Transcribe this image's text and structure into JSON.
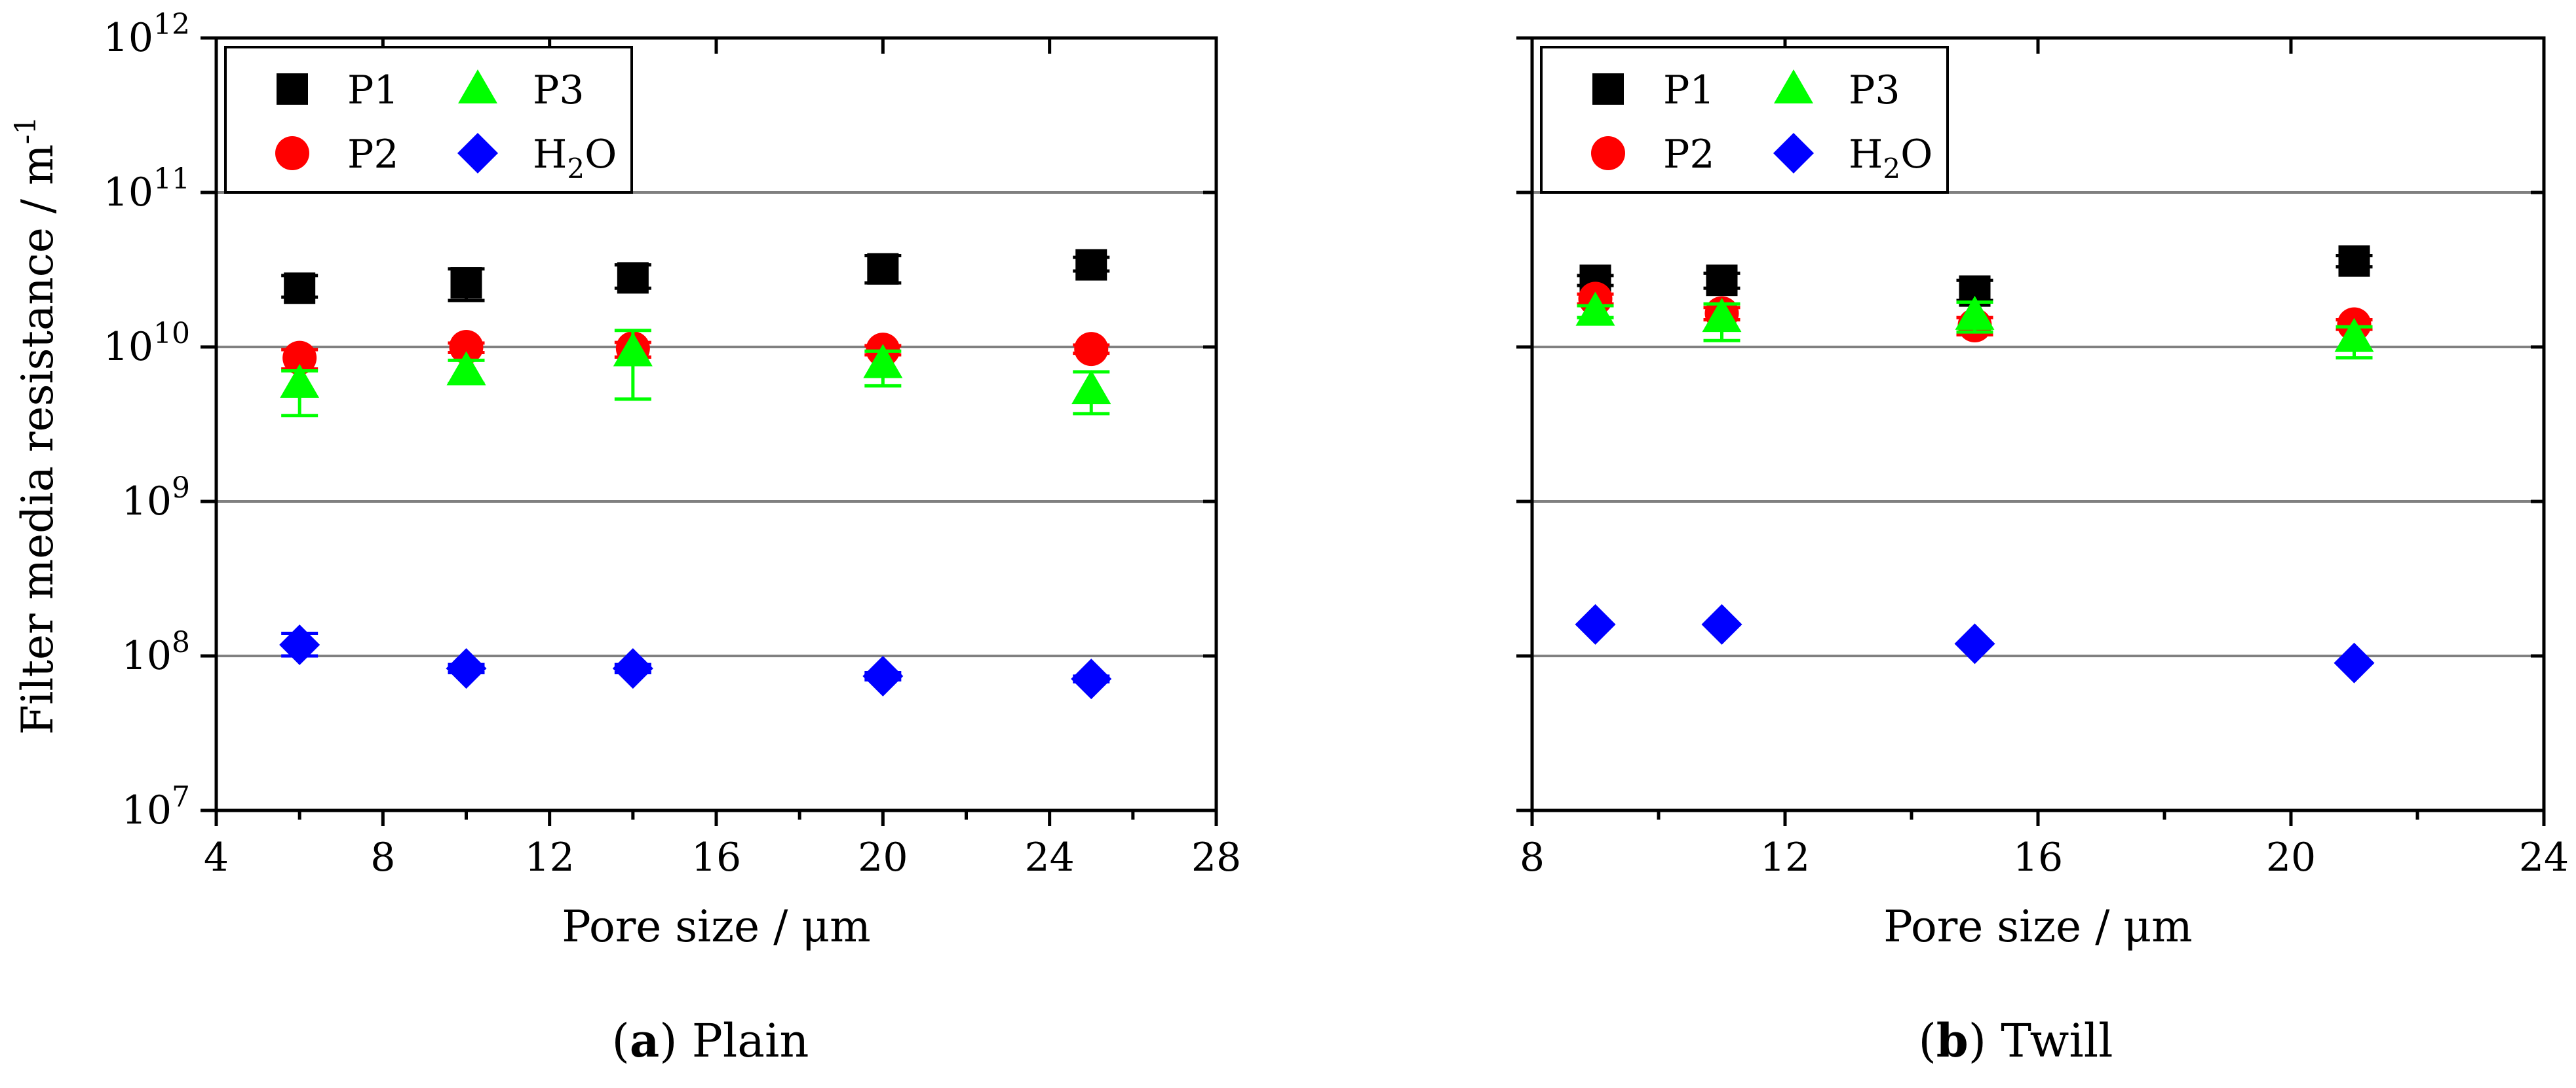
{
  "y_axis_label": "Filter media resistance / m",
  "y_axis_label_superscript": "-1",
  "colors": {
    "P1": "#000000",
    "P2": "#ff0000",
    "P3": "#00ff00",
    "H2O": "#0000ff",
    "grid": "#808080"
  },
  "legend": [
    {
      "key": "P1",
      "label": "P1",
      "marker": "square"
    },
    {
      "key": "P3",
      "label": "P3",
      "marker": "triangle"
    },
    {
      "key": "P2",
      "label": "P2",
      "marker": "circle"
    },
    {
      "key": "H2O",
      "label": "H",
      "subscript": "2",
      "suffix": "O",
      "marker": "diamond"
    }
  ],
  "chart_data": [
    {
      "type": "scatter",
      "panel": "a",
      "caption_letter": "a",
      "caption_text": " Plain",
      "xlabel": "Pore size / μm",
      "xlim": [
        4,
        28
      ],
      "x_ticks": [
        4,
        8,
        12,
        16,
        20,
        24,
        28
      ],
      "y_scale": "log",
      "ylim": [
        10000000.0,
        1000000000000.0
      ],
      "y_tick_exponents": [
        7,
        8,
        9,
        10,
        11,
        12
      ],
      "y_tick_base": "10",
      "grid": "horizontal at major ticks",
      "legend_position": "top-left",
      "series": [
        {
          "name": "P1",
          "marker": "square",
          "x": [
            6,
            10,
            14,
            20,
            25
          ],
          "y": [
            24000000000.0,
            26000000000.0,
            28000000000.0,
            32000000000.0,
            34000000000.0
          ],
          "y_err_low": [
            21000000000.0,
            20000000000.0,
            24000000000.0,
            26000000000.0,
            31000000000.0
          ],
          "y_err_high": [
            29000000000.0,
            32000000000.0,
            34000000000.0,
            39000000000.0,
            38000000000.0
          ]
        },
        {
          "name": "P2",
          "marker": "circle",
          "x": [
            6,
            10,
            14,
            20,
            25
          ],
          "y": [
            8500000000.0,
            10000000000.0,
            9800000000.0,
            9600000000.0,
            9700000000.0
          ],
          "y_err_low": [
            7200000000.0,
            9200000000.0,
            8600000000.0,
            8900000000.0,
            9100000000.0
          ],
          "y_err_high": [
            9600000000.0,
            10600000000.0,
            10700000000.0,
            10200000000.0,
            10300000000.0
          ]
        },
        {
          "name": "P3",
          "marker": "triangle",
          "x": [
            6,
            10,
            14,
            20,
            25
          ],
          "y": [
            5800000000.0,
            7000000000.0,
            9300000000.0,
            7800000000.0,
            5300000000.0
          ],
          "y_err_low": [
            3600000000.0,
            5800000000.0,
            4600000000.0,
            5600000000.0,
            3700000000.0
          ],
          "y_err_high": [
            7000000000.0,
            8200000000.0,
            12800000000.0,
            9400000000.0,
            6900000000.0
          ]
        },
        {
          "name": "H2O",
          "marker": "diamond",
          "x": [
            6,
            10,
            14,
            20,
            25
          ],
          "y": [
            118000000.0,
            83000000.0,
            83000000.0,
            74000000.0,
            71000000.0
          ],
          "y_err_low": [
            100000000.0,
            78000000.0,
            78000000.0,
            70000000.0,
            68000000.0
          ],
          "y_err_high": [
            140000000.0,
            88000000.0,
            88000000.0,
            78000000.0,
            74000000.0
          ]
        }
      ]
    },
    {
      "type": "scatter",
      "panel": "b",
      "caption_letter": "b",
      "caption_text": " Twill",
      "xlabel": "Pore size / μm",
      "xlim": [
        8,
        24
      ],
      "x_ticks": [
        8,
        12,
        16,
        20,
        24
      ],
      "y_scale": "log",
      "ylim": [
        10000000.0,
        1000000000000.0
      ],
      "y_tick_exponents": [
        7,
        8,
        9,
        10,
        11,
        12
      ],
      "grid": "horizontal at major ticks",
      "legend_position": "top-left",
      "series": [
        {
          "name": "P1",
          "marker": "square",
          "x": [
            9,
            11,
            15,
            21
          ],
          "y": [
            27000000000.0,
            27000000000.0,
            23000000000.0,
            36000000000.0
          ],
          "y_err_low": [
            25000000000.0,
            24000000000.0,
            20000000000.0,
            33000000000.0
          ],
          "y_err_high": [
            29000000000.0,
            30000000000.0,
            27000000000.0,
            39000000000.0
          ]
        },
        {
          "name": "P2",
          "marker": "circle",
          "x": [
            9,
            11,
            15,
            21
          ],
          "y": [
            20500000000.0,
            16500000000.0,
            13800000000.0,
            14000000000.0
          ],
          "y_err_low": [
            19000000000.0,
            15000000000.0,
            12000000000.0,
            13000000000.0
          ],
          "y_err_high": [
            22000000000.0,
            18000000000.0,
            15500000000.0,
            15000000000.0
          ]
        },
        {
          "name": "P3",
          "marker": "triangle",
          "x": [
            9,
            11,
            15,
            21
          ],
          "y": [
            17000000000.0,
            15500000000.0,
            16000000000.0,
            11500000000.0
          ],
          "y_err_low": [
            15500000000.0,
            11000000000.0,
            12500000000.0,
            8500000000.0
          ],
          "y_err_high": [
            18500000000.0,
            19000000000.0,
            19500000000.0,
            13500000000.0
          ]
        },
        {
          "name": "H2O",
          "marker": "diamond",
          "x": [
            9,
            11,
            15,
            21
          ],
          "y": [
            160000000.0,
            160000000.0,
            120000000.0,
            90000000.0
          ]
        }
      ]
    }
  ]
}
